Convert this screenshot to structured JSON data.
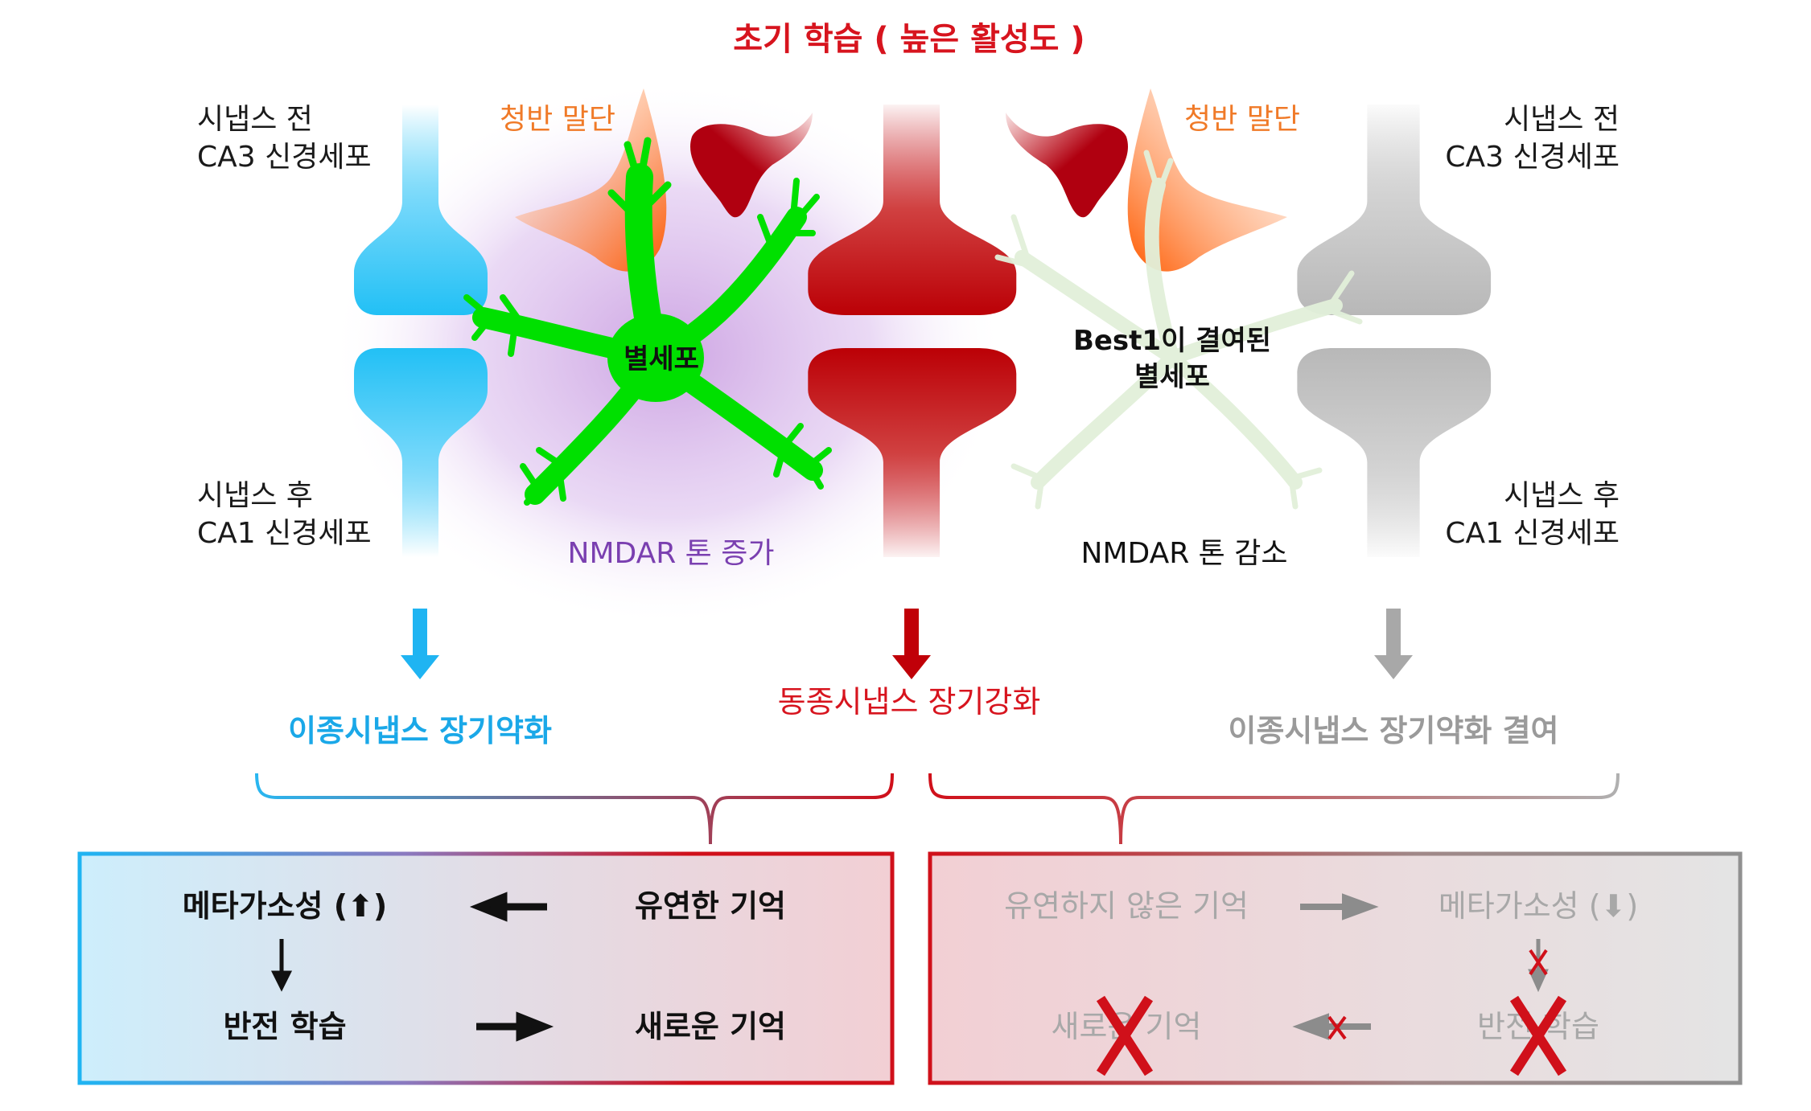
{
  "title": "초기 학습 ( 높은 활성도 )",
  "left": {
    "pre_label": [
      "시냅스 전",
      "CA3 신경세포"
    ],
    "post_label": [
      "시냅스 후",
      "CA1 신경세포"
    ],
    "lc_label": "청반 말단",
    "astrocyte_label": "별세포",
    "nmdar_label": "NMDAR 톤 증가",
    "outcome": "이종시냅스 장기약화"
  },
  "center": {
    "outcome": "동종시냅스 장기강화"
  },
  "right": {
    "pre_label": [
      "시냅스 전",
      "CA3 신경세포"
    ],
    "post_label": [
      "시냅스 후",
      "CA1 신경세포"
    ],
    "lc_label": "청반 말단",
    "astrocyte_label": [
      "Best1이 결여된",
      "별세포"
    ],
    "nmdar_label": "NMDAR 톤 감소",
    "outcome": "이종시냅스 장기약화 결여"
  },
  "box_left": {
    "metaplasticity": "메타가소성 (⬆)",
    "flexible_memory": "유연한 기억",
    "reversal_learning": "반전 학습",
    "new_memory": "새로운 기억"
  },
  "box_right": {
    "inflexible_memory": "유연하지 않은 기억",
    "metaplasticity": "메타가소성 (⬇)",
    "new_memory": "새로운 기억",
    "reversal_learning": "반전 학습"
  },
  "colors": {
    "title_red": "#d7141e",
    "blue": "#29c4f6",
    "red": "#c00008",
    "gray": "#b5b5b5",
    "orange": "#ff6a14",
    "green": "#00e000",
    "purple": "#7a3fb0",
    "lc_orange": "#f07a28"
  }
}
